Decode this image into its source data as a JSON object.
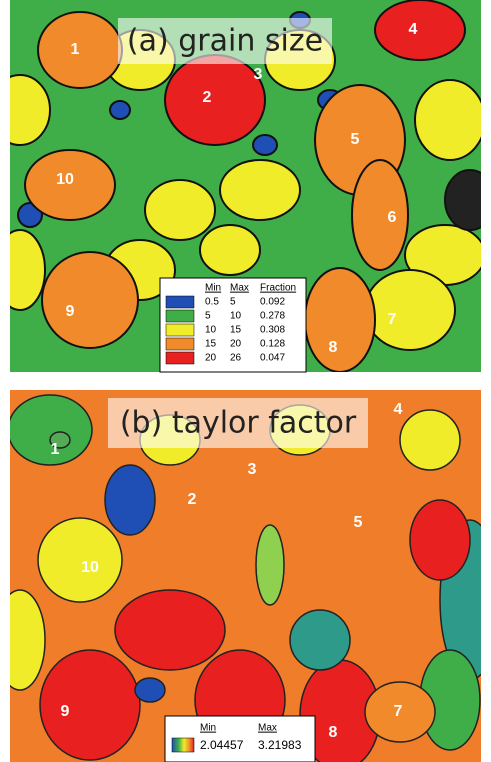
{
  "panels": [
    {
      "title": "(a) grain size",
      "grains": [
        "1",
        "2",
        "3",
        "4",
        "5",
        "6",
        "7",
        "8",
        "9",
        "10"
      ],
      "legend": {
        "headers": [
          "Min",
          "Max",
          "Fraction"
        ],
        "rows": [
          {
            "color": "#1f4fb5",
            "min": 0.5,
            "max": 5,
            "fraction": 0.092
          },
          {
            "color": "#3fae49",
            "min": 5,
            "max": 10,
            "fraction": 0.278
          },
          {
            "color": "#f0ec2a",
            "min": 10,
            "max": 15,
            "fraction": 0.308
          },
          {
            "color": "#f08a2a",
            "min": 15,
            "max": 20,
            "fraction": 0.128
          },
          {
            "color": "#e8201f",
            "min": 20,
            "max": 26,
            "fraction": 0.047
          }
        ]
      }
    },
    {
      "title": "(b) taylor factor",
      "grains": [
        "1",
        "2",
        "3",
        "4",
        "5",
        "7",
        "8",
        "9",
        "10"
      ],
      "legend": {
        "headers": [
          "Min",
          "Max"
        ],
        "min": 2.04457,
        "max": 3.21983
      }
    }
  ]
}
